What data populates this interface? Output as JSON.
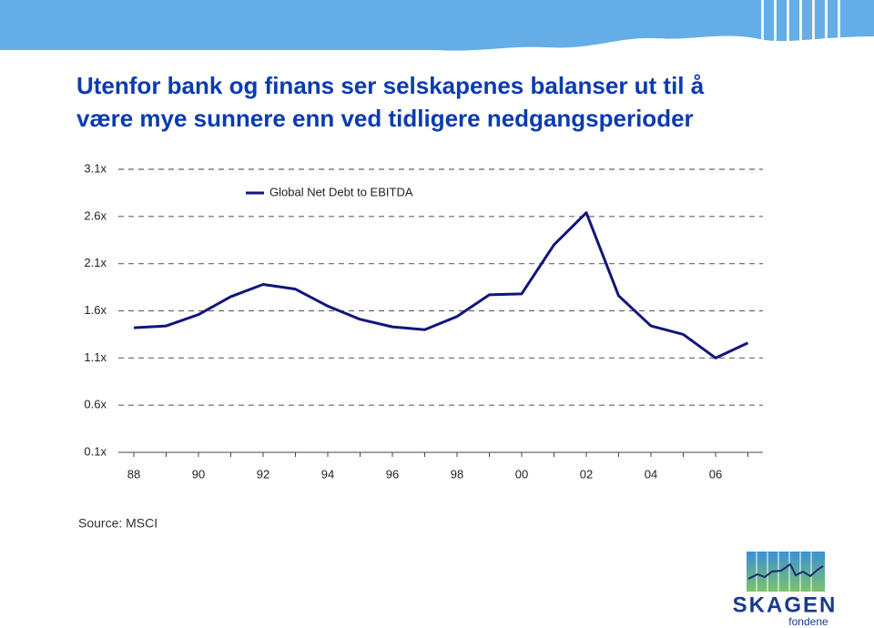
{
  "chart_data": {
    "type": "line",
    "title": [
      "Utenfor bank og finans ser selskapenes balanser ut til å",
      "være mye sunnere enn ved tidligere nedgangsperioder"
    ],
    "categories": [
      "88",
      null,
      "90",
      null,
      "92",
      null,
      "94",
      null,
      "96",
      null,
      "98",
      null,
      "00",
      null,
      "02",
      null,
      "04",
      null,
      "06",
      null
    ],
    "series": [
      {
        "name": "Global Net Debt to EBITDA",
        "color": "#12157a",
        "values": [
          1.42,
          1.44,
          1.56,
          1.75,
          1.88,
          1.83,
          1.65,
          1.51,
          1.43,
          1.4,
          1.54,
          1.77,
          1.78,
          2.3,
          2.64,
          1.76,
          1.44,
          1.35,
          1.1,
          1.26
        ]
      }
    ],
    "ylim": [
      0.1,
      3.1
    ],
    "yticks": [
      {
        "value": 0.1,
        "label": "0.1x"
      },
      {
        "value": 0.6,
        "label": "0.6x"
      },
      {
        "value": 1.1,
        "label": "1.1x"
      },
      {
        "value": 1.6,
        "label": "1.6x"
      },
      {
        "value": 2.1,
        "label": "2.1x"
      },
      {
        "value": 2.6,
        "label": "2.6x"
      },
      {
        "value": 3.1,
        "label": "3.1x"
      }
    ],
    "grid": true,
    "legend": "top-left",
    "source": "Source: MSCI"
  },
  "logo": {
    "name": "SKAGEN",
    "subtitle": "fondene"
  }
}
